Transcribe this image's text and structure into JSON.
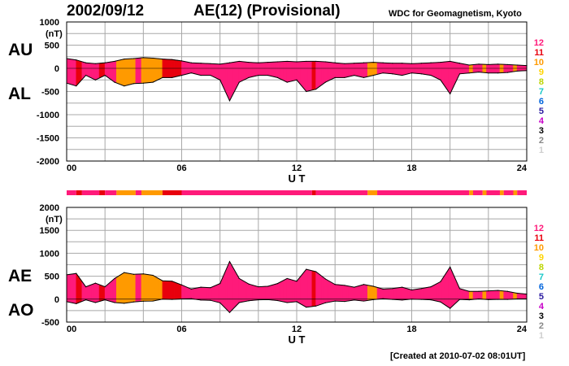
{
  "header": {
    "date": "2002/09/12",
    "title": "AE(12) (Provisional)",
    "source": "WDC for Geomagnetism, Kyoto"
  },
  "footer": {
    "created": "[Created at 2010-07-02 08:01UT]"
  },
  "activity_scale": {
    "levels": [
      "12",
      "11",
      "10",
      "9",
      "8",
      "7",
      "6",
      "5",
      "4",
      "3",
      "2",
      "1"
    ],
    "colors": {
      "12": "#ff1a7a",
      "11": "#e8000d",
      "10": "#ff9a00",
      "9": "#ffd400",
      "8": "#bcd400",
      "7": "#19c8c8",
      "6": "#0064dc",
      "5": "#2a1aa0",
      "4": "#c800c8",
      "3": "#000000",
      "2": "#888888",
      "1": "#cfcfcf"
    },
    "segments": [
      {
        "start": 0.0,
        "end": 0.5,
        "level": 12
      },
      {
        "start": 0.5,
        "end": 0.8,
        "level": 11
      },
      {
        "start": 0.8,
        "end": 1.7,
        "level": 12
      },
      {
        "start": 1.7,
        "end": 2.0,
        "level": 11
      },
      {
        "start": 2.0,
        "end": 2.6,
        "level": 12
      },
      {
        "start": 2.6,
        "end": 3.6,
        "level": 10
      },
      {
        "start": 3.6,
        "end": 3.9,
        "level": 12
      },
      {
        "start": 3.9,
        "end": 5.0,
        "level": 10
      },
      {
        "start": 5.0,
        "end": 6.0,
        "level": 11
      },
      {
        "start": 6.0,
        "end": 12.8,
        "level": 12
      },
      {
        "start": 12.8,
        "end": 13.0,
        "level": 11
      },
      {
        "start": 13.0,
        "end": 15.7,
        "level": 12
      },
      {
        "start": 15.7,
        "end": 16.2,
        "level": 10
      },
      {
        "start": 16.2,
        "end": 21.0,
        "level": 12
      },
      {
        "start": 21.0,
        "end": 21.2,
        "level": 10
      },
      {
        "start": 21.2,
        "end": 21.7,
        "level": 12
      },
      {
        "start": 21.7,
        "end": 21.9,
        "level": 10
      },
      {
        "start": 21.9,
        "end": 22.6,
        "level": 12
      },
      {
        "start": 22.6,
        "end": 22.8,
        "level": 10
      },
      {
        "start": 22.8,
        "end": 23.3,
        "level": 12
      },
      {
        "start": 23.3,
        "end": 23.5,
        "level": 10
      },
      {
        "start": 23.5,
        "end": 24.0,
        "level": 12
      }
    ]
  },
  "chart_data": [
    {
      "type": "area",
      "series": [
        {
          "name": "AU",
          "x": [
            0,
            0.5,
            1,
            1.5,
            2,
            2.5,
            3,
            3.5,
            4,
            4.5,
            5,
            5.5,
            6,
            6.5,
            7,
            7.5,
            8,
            8.5,
            9,
            9.5,
            10,
            10.5,
            11,
            11.5,
            12,
            12.5,
            13,
            13.5,
            14,
            14.5,
            15,
            15.5,
            16,
            16.5,
            17,
            17.5,
            18,
            18.5,
            19,
            19.5,
            20,
            20.5,
            21,
            21.5,
            22,
            22.5,
            23,
            23.5,
            24
          ],
          "values": [
            210,
            180,
            120,
            100,
            120,
            150,
            200,
            210,
            230,
            220,
            200,
            190,
            160,
            120,
            110,
            100,
            90,
            120,
            150,
            130,
            120,
            130,
            140,
            150,
            140,
            150,
            150,
            140,
            120,
            100,
            110,
            120,
            130,
            120,
            110,
            110,
            100,
            110,
            120,
            130,
            150,
            110,
            70,
            90,
            80,
            90,
            80,
            70,
            60
          ]
        },
        {
          "name": "AL",
          "x": [
            0,
            0.5,
            1,
            1.5,
            2,
            2.5,
            3,
            3.5,
            4,
            4.5,
            5,
            5.5,
            6,
            6.5,
            7,
            7.5,
            8,
            8.5,
            9,
            9.5,
            10,
            10.5,
            11,
            11.5,
            12,
            12.5,
            13,
            13.5,
            14,
            14.5,
            15,
            15.5,
            16,
            16.5,
            17,
            17.5,
            18,
            18.5,
            19,
            19.5,
            20,
            20.5,
            21,
            21.5,
            22,
            22.5,
            23,
            23.5,
            24
          ],
          "values": [
            -320,
            -380,
            -150,
            -250,
            -150,
            -300,
            -380,
            -330,
            -320,
            -300,
            -200,
            -200,
            -150,
            -100,
            -150,
            -150,
            -250,
            -700,
            -300,
            -200,
            -150,
            -150,
            -200,
            -300,
            -250,
            -500,
            -450,
            -300,
            -200,
            -200,
            -150,
            -200,
            -150,
            -100,
            -120,
            -150,
            -100,
            -120,
            -150,
            -250,
            -550,
            -120,
            -100,
            -80,
            -100,
            -100,
            -90,
            -60,
            -50
          ]
        }
      ],
      "x_ticks": [
        "00",
        "06",
        "12",
        "18",
        "24"
      ],
      "xlabel": "U T",
      "ylabel": "(nT)",
      "y_ticks": [
        1000,
        500,
        0,
        -500,
        -1000,
        -1500,
        -2000
      ],
      "ylim": [
        -2000,
        1000
      ],
      "side_labels": [
        "AU",
        "AL"
      ],
      "grid": true
    },
    {
      "type": "area",
      "series": [
        {
          "name": "AE",
          "x": [
            0,
            0.5,
            1,
            1.5,
            2,
            2.5,
            3,
            3.5,
            4,
            4.5,
            5,
            5.5,
            6,
            6.5,
            7,
            7.5,
            8,
            8.5,
            9,
            9.5,
            10,
            10.5,
            11,
            11.5,
            12,
            12.5,
            13,
            13.5,
            14,
            14.5,
            15,
            15.5,
            16,
            16.5,
            17,
            17.5,
            18,
            18.5,
            19,
            19.5,
            20,
            20.5,
            21,
            21.5,
            22,
            22.5,
            23,
            23.5,
            24
          ],
          "values": [
            530,
            560,
            270,
            350,
            270,
            450,
            580,
            540,
            550,
            520,
            400,
            390,
            310,
            220,
            260,
            250,
            340,
            820,
            450,
            330,
            270,
            280,
            340,
            450,
            390,
            650,
            600,
            440,
            320,
            300,
            260,
            320,
            280,
            220,
            230,
            260,
            200,
            230,
            270,
            380,
            700,
            230,
            170,
            170,
            180,
            190,
            170,
            130,
            110
          ]
        },
        {
          "name": "AO",
          "x": [
            0,
            0.5,
            1,
            1.5,
            2,
            2.5,
            3,
            3.5,
            4,
            4.5,
            5,
            5.5,
            6,
            6.5,
            7,
            7.5,
            8,
            8.5,
            9,
            9.5,
            10,
            10.5,
            11,
            11.5,
            12,
            12.5,
            13,
            13.5,
            14,
            14.5,
            15,
            15.5,
            16,
            16.5,
            17,
            17.5,
            18,
            18.5,
            19,
            19.5,
            20,
            20.5,
            21,
            21.5,
            22,
            22.5,
            23,
            23.5,
            24
          ],
          "values": [
            -55,
            -100,
            -15,
            -75,
            -15,
            -75,
            -90,
            -60,
            -45,
            -40,
            0,
            -5,
            5,
            10,
            -20,
            -25,
            -80,
            -290,
            -75,
            -35,
            -15,
            -10,
            -30,
            -75,
            -55,
            -175,
            -150,
            -80,
            -40,
            -50,
            -20,
            -40,
            -10,
            10,
            -5,
            -20,
            0,
            -5,
            -15,
            -60,
            -200,
            -5,
            -15,
            5,
            -10,
            -5,
            -5,
            5,
            5
          ]
        }
      ],
      "x_ticks": [
        "00",
        "06",
        "12",
        "18",
        "24"
      ],
      "xlabel": "U T",
      "ylabel": "(nT)",
      "y_ticks": [
        2000,
        1500,
        1000,
        500,
        0,
        -500
      ],
      "ylim": [
        -500,
        2000
      ],
      "side_labels": [
        "AE",
        "AO"
      ],
      "grid": true
    }
  ]
}
